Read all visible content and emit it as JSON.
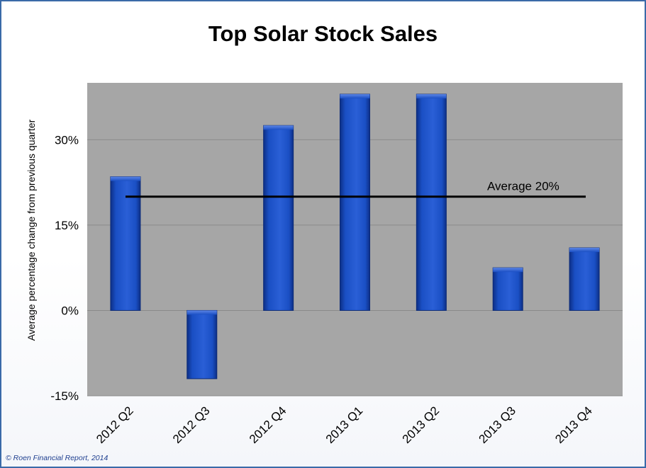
{
  "chart_data": {
    "type": "bar",
    "title": "Top Solar Stock Sales",
    "ylabel": "Average percentage change from previous quarter",
    "xlabel": "",
    "categories": [
      "2012 Q2",
      "2012 Q3",
      "2012 Q4",
      "2013 Q1",
      "2013 Q2",
      "2013 Q3",
      "2013 Q4"
    ],
    "values": [
      23.5,
      -12,
      32.5,
      38,
      38,
      7.5,
      11
    ],
    "ylim": [
      -15,
      40
    ],
    "yticks": [
      -15,
      0,
      15,
      30
    ],
    "ytick_labels": [
      "-15%",
      "0%",
      "15%",
      "30%"
    ],
    "reference_line": {
      "value": 20,
      "label": "Average 20%"
    },
    "grid": true,
    "legend": "none",
    "colors": {
      "bar": "#1a4fc4",
      "bar_dark": "#0d2f86",
      "plot_bg": "#a6a6a6",
      "frame": "#3a6aa8",
      "gridline": "#8a8a8a"
    }
  },
  "footer": {
    "source": "© Roen Financial Report, 2014"
  }
}
